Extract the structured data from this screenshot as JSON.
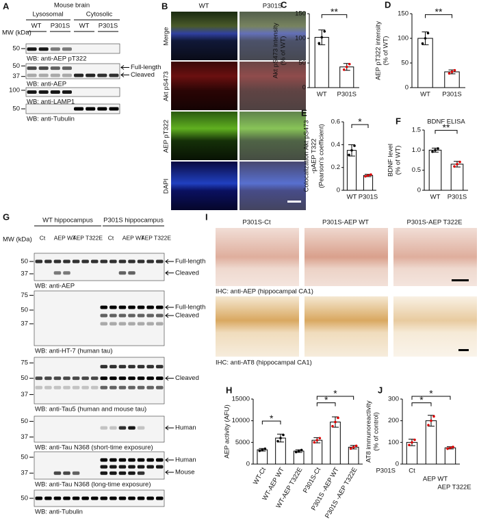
{
  "panels": {
    "A": {
      "letter": "A",
      "title": "Mouse brain",
      "mw": "MW (kDa)",
      "fractions": [
        "Lysosomal",
        "Cytosolic"
      ],
      "lanes": [
        "WT",
        "P301S",
        "WT",
        "P301S"
      ],
      "blots": [
        {
          "label": "WB: anti-AEP pT322",
          "markers": [
            50
          ]
        },
        {
          "label": "WB: anti-AEP",
          "markers": [
            50,
            37
          ],
          "arrows": [
            "Full-length",
            "Cleaved"
          ]
        },
        {
          "label": "WB: anti-LAMP1",
          "markers": [
            100
          ]
        },
        {
          "label": "WB: anti-Tubulin",
          "markers": [
            50
          ]
        }
      ]
    },
    "B": {
      "letter": "B",
      "columns": [
        "WT",
        "P301S"
      ],
      "rows": [
        "Merge",
        "Akt pS473",
        "AEP pT322",
        "DAPI"
      ]
    },
    "G": {
      "letter": "G",
      "groups": [
        "WT hippocampus",
        "P301S hippocampus"
      ],
      "mw": "MW (kDa)",
      "lanes": [
        [
          "Ct",
          "AEP WT",
          "AEP T322E"
        ],
        [
          "Ct",
          "AEP WT",
          "AEP T322E"
        ]
      ],
      "blots": [
        {
          "label": "WB: anti-AEP",
          "markers": [
            50,
            37
          ],
          "arrows": [
            "Full-length",
            "Cleaved"
          ]
        },
        {
          "label": "WB: anti-HT-7 (human tau)",
          "markers": [
            75,
            50,
            37
          ],
          "arrows": [
            "Full-length",
            "Cleaved"
          ]
        },
        {
          "label": "WB: anti-Tau5 (human and mouse tau)",
          "markers": [
            75,
            50,
            37
          ],
          "arrows": [
            "Cleaved"
          ]
        },
        {
          "label": "WB: anti-Tau N368 (short-time exposure)",
          "markers": [
            50,
            37
          ],
          "arrows": [
            "Human"
          ]
        },
        {
          "label": "WB: anti-Tau N368 (long-time exposure)",
          "markers": [
            50,
            37
          ],
          "arrows": [
            "Human",
            "Mouse"
          ]
        },
        {
          "label": "WB: anti-Tubulin",
          "markers": [
            50
          ]
        }
      ]
    },
    "I": {
      "letter": "I",
      "columns": [
        "P301S-Ct",
        "P301S-AEP WT",
        "P301S-AEP T322E"
      ],
      "captions": [
        "IHC: anti-AEP (hippocampal CA1)",
        "IHC: anti-AT8    (hippocampal CA1)"
      ]
    }
  },
  "chart_data": [
    {
      "type": "bar",
      "letter": "C",
      "ylabel": [
        "Akt pS473 intensity",
        "(% of WT)"
      ],
      "categories": [
        "WT",
        "P301S"
      ],
      "values": [
        102,
        42
      ],
      "errors": [
        15,
        7
      ],
      "ylim": [
        0,
        150
      ],
      "yticks": [
        0,
        50,
        100,
        150
      ],
      "annotations": [
        "**"
      ]
    },
    {
      "type": "bar",
      "letter": "D",
      "ylabel": [
        "AEP pT322 intensity",
        "(% of WT)"
      ],
      "categories": [
        "WT",
        "P301S"
      ],
      "values": [
        100,
        32
      ],
      "errors": [
        13,
        4
      ],
      "ylim": [
        0,
        150
      ],
      "yticks": [
        0,
        50,
        100,
        150
      ],
      "annotations": [
        "**"
      ]
    },
    {
      "type": "bar",
      "letter": "E",
      "ylabel": [
        "Colocalization Akt pS473",
        "-pAEP T322",
        "(Pearson's coefficient)"
      ],
      "categories": [
        "WT",
        "P301S"
      ],
      "values": [
        0.35,
        0.13
      ],
      "errors": [
        0.05,
        0.01
      ],
      "ylim": [
        0,
        0.6
      ],
      "yticks": [
        0,
        0.2,
        0.4,
        0.6
      ],
      "annotations": [
        "*"
      ]
    },
    {
      "type": "bar",
      "letter": "F",
      "title": "BDNF ELISA",
      "ylabel": [
        "BDNF level",
        "(% of WT)"
      ],
      "categories": [
        "WT",
        "P301S"
      ],
      "values": [
        1.0,
        0.65
      ],
      "errors": [
        0.05,
        0.07
      ],
      "ylim": [
        0,
        1.5
      ],
      "yticks": [
        0,
        0.5,
        {
          "value": 1,
          "label": "1.0"
        },
        1.5
      ],
      "annotations": [
        "**"
      ]
    },
    {
      "type": "bar",
      "letter": "H",
      "ylabel": [
        "AEP activity (AFU)"
      ],
      "categories": [
        "WT-Ct",
        "WT-AEP WT",
        "WT-AEP T322E",
        "P301S-Ct",
        "P301S -AEP WT",
        "P301S -AEP T322E"
      ],
      "values": [
        3300,
        6000,
        3000,
        5500,
        9700,
        3900
      ],
      "errors": [
        300,
        900,
        300,
        600,
        1200,
        400
      ],
      "ylim": [
        0,
        15000
      ],
      "yticks": [
        0,
        5000,
        10000,
        15000
      ],
      "annotations": [
        "*",
        "*",
        "*"
      ]
    },
    {
      "type": "bar",
      "letter": "J",
      "ylabel": [
        "AT8 immunoreactivity",
        "(% of control)"
      ],
      "xprefix": "P301S",
      "categories": [
        "Ct",
        "AEP WT",
        "AEP T322E"
      ],
      "values": [
        100,
        200,
        75
      ],
      "errors": [
        15,
        25,
        5
      ],
      "ylim": [
        0,
        300
      ],
      "yticks": [
        0,
        100,
        200,
        300
      ],
      "annotations": [
        "*",
        "*"
      ]
    }
  ]
}
